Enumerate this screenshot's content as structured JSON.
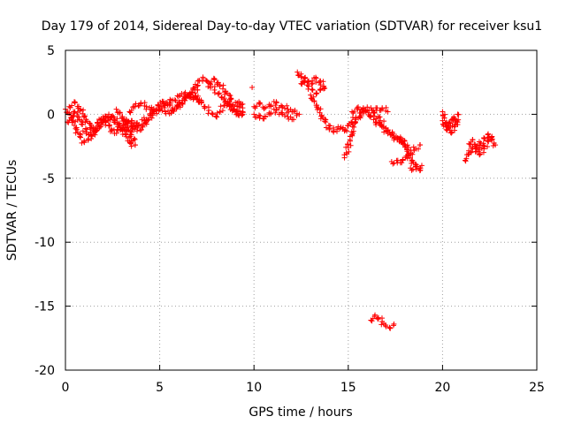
{
  "chart_data": {
    "type": "scatter",
    "title": "Day 179 of 2014, Sidereal Day-to-day VTEC variation (SDTVAR) for receiver ksu1",
    "xlabel": "GPS time / hours",
    "ylabel": "SDTVAR / TECUs",
    "xlim": [
      0,
      25
    ],
    "ylim": [
      -20,
      5
    ],
    "xticks": [
      0,
      5,
      10,
      15,
      20,
      25
    ],
    "yticks": [
      5,
      0,
      -5,
      -10,
      -15,
      -20
    ],
    "xtick_labels": [
      "0",
      "5",
      "10",
      "15",
      "20",
      "25"
    ],
    "ytick_labels": [
      "5",
      "0",
      "-5",
      "-10",
      "-15",
      "-20"
    ],
    "grid": true,
    "marker": "+",
    "series": [
      {
        "name": "ksu1",
        "color": "#ff0000",
        "segments": [
          {
            "x": [
              0.0,
              0.2,
              0.4,
              0.6,
              0.8,
              1.0,
              1.2,
              1.5,
              1.8,
              2.0,
              2.3,
              2.6,
              2.9,
              3.2,
              3.5
            ],
            "y": [
              0.4,
              0.1,
              -0.5,
              -1.2,
              -1.8,
              -2.2,
              -2.0,
              -1.4,
              -1.0,
              -0.6,
              -0.3,
              -0.5,
              -0.9,
              -1.3,
              -2.5
            ]
          },
          {
            "x": [
              0.1,
              0.3,
              0.5,
              0.7,
              0.9,
              1.1,
              1.4,
              1.7,
              2.0,
              2.3,
              2.6,
              2.9,
              3.2
            ],
            "y": [
              -0.6,
              -0.3,
              0.2,
              -0.2,
              -0.8,
              -1.4,
              -1.7,
              -1.1,
              -0.5,
              0.0,
              -0.4,
              -1.0,
              -1.6
            ]
          },
          {
            "x": [
              0.2,
              0.5,
              0.8,
              1.1,
              1.4,
              1.7,
              2.0,
              2.3,
              2.6,
              2.9,
              3.2,
              3.5,
              3.8
            ],
            "y": [
              0.6,
              0.9,
              0.4,
              -0.4,
              -1.1,
              -0.7,
              -0.2,
              -0.9,
              -1.5,
              -1.2,
              -0.8,
              -0.5,
              -0.9
            ]
          },
          {
            "x": [
              2.7,
              2.9,
              3.1,
              3.3,
              3.5,
              3.7
            ],
            "y": [
              0.4,
              0.1,
              -0.4,
              -1.0,
              -1.6,
              -2.4
            ]
          },
          {
            "x": [
              3.0,
              3.3,
              3.6,
              3.9,
              4.2,
              4.5,
              4.8,
              5.1,
              5.4,
              5.7,
              6.0,
              6.3,
              6.6,
              6.9,
              7.2
            ],
            "y": [
              -0.3,
              -0.7,
              -0.9,
              -0.8,
              -0.5,
              -0.1,
              0.3,
              0.6,
              0.9,
              1.1,
              1.4,
              1.6,
              1.5,
              1.3,
              1.1
            ]
          },
          {
            "x": [
              3.5,
              3.8,
              4.1,
              4.4,
              4.7,
              5.0,
              5.3,
              5.6,
              5.9,
              6.2,
              6.5,
              6.8,
              7.1
            ],
            "y": [
              -0.9,
              -1.3,
              -1.0,
              -0.4,
              0.2,
              0.5,
              0.2,
              0.1,
              0.6,
              1.1,
              1.4,
              1.3,
              1.0
            ]
          },
          {
            "x": [
              3.4,
              3.7,
              4.0,
              4.3,
              4.6,
              4.9,
              5.2,
              5.5,
              5.8,
              6.1,
              6.4,
              6.7,
              7.0
            ],
            "y": [
              0.2,
              0.6,
              0.9,
              0.6,
              0.3,
              0.7,
              1.0,
              0.7,
              0.4,
              0.8,
              1.3,
              1.7,
              1.9
            ]
          },
          {
            "x": [
              6.6,
              6.9,
              7.1,
              7.3,
              7.5,
              7.7,
              7.9,
              8.1,
              8.3,
              8.5,
              8.7,
              8.9,
              9.1,
              9.4
            ],
            "y": [
              1.6,
              2.1,
              2.6,
              2.8,
              2.6,
              2.2,
              1.9,
              1.6,
              1.3,
              1.0,
              0.6,
              0.3,
              0.2,
              0.0
            ]
          },
          {
            "x": [
              7.0,
              7.2,
              7.4,
              7.6,
              7.8,
              8.0,
              8.2,
              8.4,
              8.6,
              8.8,
              9.0,
              9.2,
              9.4
            ],
            "y": [
              1.2,
              0.9,
              0.6,
              0.3,
              0.0,
              -0.2,
              0.2,
              0.7,
              1.0,
              0.6,
              0.2,
              -0.1,
              0.2
            ]
          },
          {
            "x": [
              7.6,
              7.9,
              8.2,
              8.5,
              8.8,
              9.1,
              9.4
            ],
            "y": [
              2.5,
              2.7,
              2.3,
              1.8,
              1.2,
              0.7,
              0.5
            ]
          },
          {
            "x": [
              9.2,
              9.4
            ],
            "y": [
              1.0,
              0.8
            ]
          },
          {
            "x": [
              10.0,
              10.3,
              10.6,
              10.9,
              11.2,
              11.5,
              11.8,
              12.1,
              12.4
            ],
            "y": [
              0.6,
              0.8,
              0.5,
              0.7,
              0.9,
              0.6,
              0.4,
              0.2,
              0.0
            ]
          },
          {
            "x": [
              10.0,
              10.3,
              10.6,
              10.9,
              11.2,
              11.5,
              11.8,
              12.1
            ],
            "y": [
              0.0,
              -0.3,
              -0.2,
              0.1,
              0.3,
              0.1,
              -0.2,
              -0.4
            ]
          },
          {
            "x": [
              9.9
            ],
            "y": [
              2.1
            ]
          },
          {
            "x": [
              12.3,
              12.5,
              12.7,
              12.9,
              13.1,
              13.3,
              13.5,
              13.7
            ],
            "y": [
              3.3,
              2.9,
              2.6,
              2.2,
              1.9,
              1.6,
              1.9,
              2.2
            ]
          },
          {
            "x": [
              12.5,
              12.7,
              12.9,
              13.1,
              13.3,
              13.5,
              13.7
            ],
            "y": [
              2.4,
              2.8,
              2.6,
              2.4,
              2.8,
              2.6,
              2.1
            ]
          },
          {
            "x": [
              13.0,
              13.2,
              13.4,
              13.6,
              13.8,
              14.0,
              14.2,
              14.4,
              14.6,
              14.8,
              15.0,
              15.2,
              15.4,
              15.6
            ],
            "y": [
              1.5,
              1.0,
              0.5,
              -0.1,
              -0.6,
              -1.1,
              -1.3,
              -1.2,
              -1.0,
              -1.3,
              -0.9,
              -0.6,
              -0.3,
              0.1
            ]
          },
          {
            "x": [
              15.4,
              15.3,
              15.2,
              15.1,
              15.0,
              14.9,
              14.8
            ],
            "y": [
              -0.4,
              -1.0,
              -1.6,
              -2.1,
              -2.6,
              -3.0,
              -3.4
            ]
          },
          {
            "x": [
              15.2,
              15.5,
              15.8,
              16.1,
              16.4,
              16.7,
              17.0,
              17.3,
              17.6,
              17.9,
              18.2
            ],
            "y": [
              0.2,
              0.4,
              0.5,
              0.3,
              0.1,
              -0.5,
              -1.1,
              -1.6,
              -2.0,
              -2.3,
              -2.6
            ]
          },
          {
            "x": [
              15.6,
              15.9,
              16.2,
              16.5,
              16.8,
              17.1,
              17.4,
              17.7,
              18.0
            ],
            "y": [
              -0.2,
              0.2,
              -0.1,
              -0.6,
              -1.0,
              -1.4,
              -1.7,
              -1.9,
              -2.1
            ]
          },
          {
            "x": [
              16.2,
              16.5,
              16.8,
              17.1
            ],
            "y": [
              0.5,
              0.3,
              0.5,
              0.2
            ]
          },
          {
            "x": [
              17.3,
              17.6,
              17.9,
              18.2,
              18.5,
              18.8
            ],
            "y": [
              -3.7,
              -3.8,
              -3.6,
              -3.2,
              -2.8,
              -2.4
            ]
          },
          {
            "x": [
              17.8,
              18.0,
              18.2,
              18.4,
              18.6,
              18.8
            ],
            "y": [
              -1.9,
              -2.4,
              -3.0,
              -3.6,
              -4.1,
              -4.4
            ]
          },
          {
            "x": [
              18.3,
              18.6,
              18.9
            ],
            "y": [
              -4.2,
              -4.3,
              -4.0
            ]
          },
          {
            "x": [
              16.2,
              16.4,
              16.6,
              16.8,
              17.0,
              17.2,
              17.4
            ],
            "y": [
              -16.1,
              -15.8,
              -15.9,
              -16.2,
              -16.6,
              -16.7,
              -16.5
            ]
          },
          {
            "x": [
              20.0,
              20.1,
              20.3,
              20.5,
              20.7,
              20.8
            ],
            "y": [
              0.2,
              -0.3,
              -0.9,
              -1.4,
              -0.6,
              0.0
            ]
          },
          {
            "x": [
              20.0,
              20.2,
              20.4,
              20.6,
              20.8
            ],
            "y": [
              -0.5,
              -1.2,
              -0.7,
              -0.2,
              -0.8
            ]
          },
          {
            "x": [
              21.2,
              21.4,
              21.6,
              21.8,
              22.0,
              22.2,
              22.4,
              22.6,
              22.8
            ],
            "y": [
              -3.6,
              -3.1,
              -2.6,
              -2.9,
              -2.4,
              -1.9,
              -1.6,
              -2.0,
              -2.4
            ]
          },
          {
            "x": [
              21.4,
              21.6,
              21.8,
              22.0,
              22.2,
              22.4,
              22.6
            ],
            "y": [
              -2.3,
              -2.0,
              -2.6,
              -3.1,
              -2.7,
              -2.1,
              -1.8
            ]
          }
        ]
      }
    ]
  }
}
